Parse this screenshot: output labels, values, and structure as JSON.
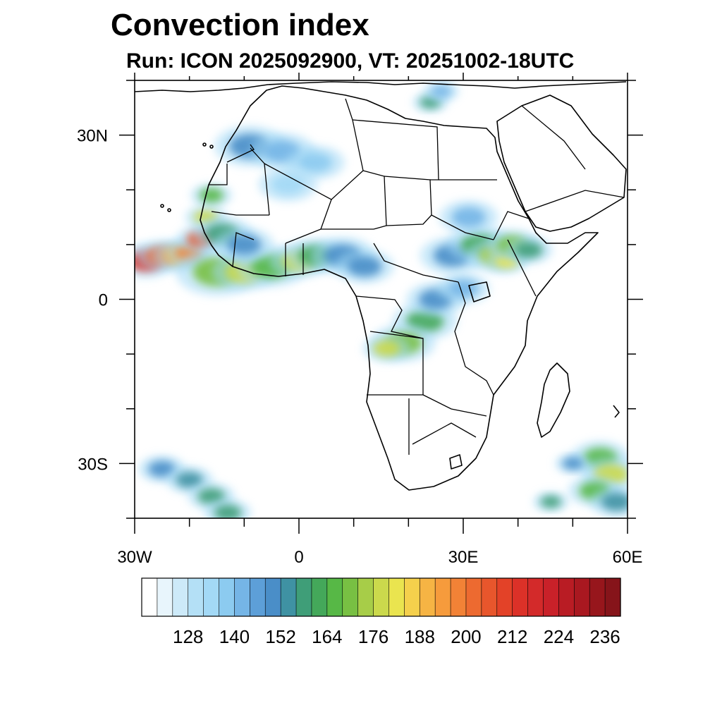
{
  "title": "Convection index",
  "subtitle": "Run: ICON 2025092900,  VT: 20251002-18UTC",
  "map": {
    "projection": "cylindrical-equidistant",
    "lon_range": [
      -30,
      60
    ],
    "lat_range": [
      -40,
      40
    ],
    "lat_ticks": [
      {
        "value": 30,
        "label": "30N"
      },
      {
        "value": 0,
        "label": "0"
      },
      {
        "value": -30,
        "label": "30S"
      }
    ],
    "lon_ticks": [
      {
        "value": -30,
        "label": "30W"
      },
      {
        "value": 0,
        "label": "0"
      },
      {
        "value": 30,
        "label": "30E"
      },
      {
        "value": 60,
        "label": "60E"
      }
    ],
    "minor_step_deg": 10,
    "land_outline_color": "#000000"
  },
  "colorbar": {
    "levels": [
      116,
      120,
      124,
      128,
      132,
      136,
      140,
      144,
      148,
      152,
      156,
      160,
      164,
      168,
      172,
      176,
      180,
      184,
      188,
      192,
      196,
      200,
      204,
      208,
      212,
      216,
      220,
      224,
      228,
      232,
      236,
      240
    ],
    "labels": [
      "128",
      "140",
      "152",
      "164",
      "176",
      "188",
      "200",
      "212",
      "224",
      "236"
    ],
    "label_values": [
      128,
      140,
      152,
      164,
      176,
      188,
      200,
      212,
      224,
      236
    ],
    "colors": [
      "#ffffff",
      "#e8f5fc",
      "#cdeaf9",
      "#b4e0f6",
      "#a3d9f6",
      "#8ccbf0",
      "#75b5e6",
      "#5d9fd8",
      "#4a8ec8",
      "#3f92a3",
      "#3f9e78",
      "#44a85a",
      "#57b846",
      "#78c043",
      "#a7cd48",
      "#cbd94c",
      "#eae44f",
      "#f5d04c",
      "#f6b444",
      "#f69b3c",
      "#f28236",
      "#ed6a30",
      "#e8562c",
      "#e34228",
      "#dc3128",
      "#d32a2a",
      "#c92129",
      "#b91c24",
      "#a91820",
      "#97161c",
      "#86141a"
    ]
  },
  "convection_cells": [
    {
      "lon": -28,
      "lat": 7,
      "value": 212,
      "size": 1.0
    },
    {
      "lon": -25,
      "lat": 8,
      "value": 200,
      "size": 0.9
    },
    {
      "lon": -22,
      "lat": 8,
      "value": 190,
      "size": 0.9
    },
    {
      "lon": -20,
      "lat": 8.5,
      "value": 196,
      "size": 0.8
    },
    {
      "lon": -18,
      "lat": 11,
      "value": 206,
      "size": 0.8
    },
    {
      "lon": -17,
      "lat": 15,
      "value": 176,
      "size": 0.7
    },
    {
      "lon": -16,
      "lat": 19,
      "value": 164,
      "size": 0.7
    },
    {
      "lon": -15,
      "lat": 5,
      "value": 168,
      "size": 1.4
    },
    {
      "lon": -10,
      "lat": 5,
      "value": 176,
      "size": 1.1
    },
    {
      "lon": -5,
      "lat": 6,
      "value": 164,
      "size": 1.2
    },
    {
      "lon": 0,
      "lat": 7,
      "value": 176,
      "size": 1.0
    },
    {
      "lon": 3,
      "lat": 8,
      "value": 160,
      "size": 1.0
    },
    {
      "lon": 8,
      "lat": 8,
      "value": 150,
      "size": 1.1
    },
    {
      "lon": 12,
      "lat": 6,
      "value": 148,
      "size": 1.0
    },
    {
      "lon": -14,
      "lat": 12,
      "value": 156,
      "size": 1.0
    },
    {
      "lon": -10,
      "lat": 10,
      "value": 150,
      "size": 1.0
    },
    {
      "lon": -9,
      "lat": 28,
      "value": 148,
      "size": 1.2
    },
    {
      "lon": -3,
      "lat": 27,
      "value": 140,
      "size": 1.1
    },
    {
      "lon": 3,
      "lat": 25,
      "value": 136,
      "size": 1.0
    },
    {
      "lon": -2,
      "lat": 21,
      "value": 134,
      "size": 1.0
    },
    {
      "lon": 23,
      "lat": -4,
      "value": 160,
      "size": 1.1
    },
    {
      "lon": 19,
      "lat": -8,
      "value": 168,
      "size": 1.1
    },
    {
      "lon": 16,
      "lat": -9,
      "value": 176,
      "size": 0.8
    },
    {
      "lon": 25,
      "lat": 0,
      "value": 148,
      "size": 1.0
    },
    {
      "lon": 28,
      "lat": 8,
      "value": 150,
      "size": 1.1
    },
    {
      "lon": 33,
      "lat": 10,
      "value": 160,
      "size": 1.1
    },
    {
      "lon": 36,
      "lat": 8,
      "value": 172,
      "size": 1.0
    },
    {
      "lon": 38,
      "lat": 7,
      "value": 182,
      "size": 0.7
    },
    {
      "lon": 39,
      "lat": 10,
      "value": 168,
      "size": 0.9
    },
    {
      "lon": 42,
      "lat": 9,
      "value": 156,
      "size": 0.8
    },
    {
      "lon": 31,
      "lat": 15,
      "value": 140,
      "size": 1.0
    },
    {
      "lon": 30,
      "lat": 2,
      "value": 140,
      "size": 0.9
    },
    {
      "lon": 24,
      "lat": 36,
      "value": 156,
      "size": 0.6
    },
    {
      "lon": 26,
      "lat": 38,
      "value": 140,
      "size": 0.6
    },
    {
      "lon": 55,
      "lat": -29,
      "value": 164,
      "size": 1.0
    },
    {
      "lon": 57,
      "lat": -32,
      "value": 176,
      "size": 1.0
    },
    {
      "lon": 54,
      "lat": -35,
      "value": 164,
      "size": 0.9
    },
    {
      "lon": 58,
      "lat": -37,
      "value": 152,
      "size": 0.9
    },
    {
      "lon": 50,
      "lat": -30,
      "value": 150,
      "size": 0.6
    },
    {
      "lon": 46,
      "lat": -37,
      "value": 156,
      "size": 0.6
    },
    {
      "lon": -25,
      "lat": -31,
      "value": 150,
      "size": 0.8
    },
    {
      "lon": -20,
      "lat": -33,
      "value": 152,
      "size": 0.8
    },
    {
      "lon": -16,
      "lat": -36,
      "value": 156,
      "size": 0.8
    },
    {
      "lon": -13,
      "lat": -39,
      "value": 156,
      "size": 0.8
    }
  ]
}
